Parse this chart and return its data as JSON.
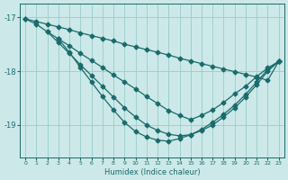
{
  "xlabel": "Humidex (Indice chaleur)",
  "bg_color": "#cce8e8",
  "grid_color": "#99cccc",
  "line_color": "#1a6b6b",
  "marker": "D",
  "markersize": 2.5,
  "linewidth": 0.9,
  "xlim": [
    -0.5,
    23.5
  ],
  "ylim": [
    -19.6,
    -16.75
  ],
  "xticks": [
    0,
    1,
    2,
    3,
    4,
    5,
    6,
    7,
    8,
    9,
    10,
    11,
    12,
    13,
    14,
    15,
    16,
    17,
    18,
    19,
    20,
    21,
    22,
    23
  ],
  "yticks": [
    -19,
    -18,
    -17
  ],
  "lines": [
    {
      "x": [
        0,
        1,
        2,
        3,
        4,
        5,
        6,
        7,
        8,
        9,
        10,
        11,
        12,
        13,
        14,
        15,
        16,
        17,
        18,
        19,
        20,
        21,
        22,
        23
      ],
      "y": [
        -17.03,
        -17.08,
        -17.13,
        -17.18,
        -17.23,
        -17.29,
        -17.34,
        -17.39,
        -17.44,
        -17.5,
        -17.55,
        -17.6,
        -17.65,
        -17.7,
        -17.76,
        -17.81,
        -17.86,
        -17.91,
        -17.96,
        -18.01,
        -18.06,
        -18.11,
        -18.17,
        -17.82
      ]
    },
    {
      "x": [
        0,
        1,
        2,
        3,
        4,
        5,
        6,
        7,
        8,
        9,
        10,
        11,
        12,
        13,
        14,
        15,
        16,
        17,
        18,
        19,
        20,
        21,
        22,
        23
      ],
      "y": [
        -17.03,
        -17.13,
        -17.27,
        -17.4,
        -17.53,
        -17.67,
        -17.8,
        -17.93,
        -18.07,
        -18.2,
        -18.33,
        -18.47,
        -18.6,
        -18.73,
        -18.82,
        -18.9,
        -18.82,
        -18.72,
        -18.58,
        -18.42,
        -18.28,
        -18.1,
        -17.94,
        -17.82
      ]
    },
    {
      "x": [
        2,
        3,
        4,
        5,
        6,
        7,
        8,
        9,
        10,
        11,
        12,
        13,
        14,
        15,
        16,
        17,
        18,
        19,
        20,
        21,
        22,
        23
      ],
      "y": [
        -17.27,
        -17.47,
        -17.67,
        -17.88,
        -18.08,
        -18.28,
        -18.48,
        -18.68,
        -18.85,
        -19.0,
        -19.1,
        -19.17,
        -19.2,
        -19.18,
        -19.1,
        -19.0,
        -18.85,
        -18.68,
        -18.48,
        -18.25,
        -18.0,
        -17.82
      ]
    },
    {
      "x": [
        3,
        4,
        5,
        6,
        7,
        8,
        9,
        10,
        11,
        12,
        13,
        14,
        15,
        16,
        17,
        18,
        19,
        20,
        21,
        22,
        23
      ],
      "y": [
        -17.4,
        -17.65,
        -17.93,
        -18.2,
        -18.47,
        -18.72,
        -18.95,
        -19.12,
        -19.22,
        -19.28,
        -19.3,
        -19.25,
        -19.18,
        -19.08,
        -18.95,
        -18.8,
        -18.63,
        -18.43,
        -18.2,
        -17.97,
        -17.82
      ]
    }
  ]
}
